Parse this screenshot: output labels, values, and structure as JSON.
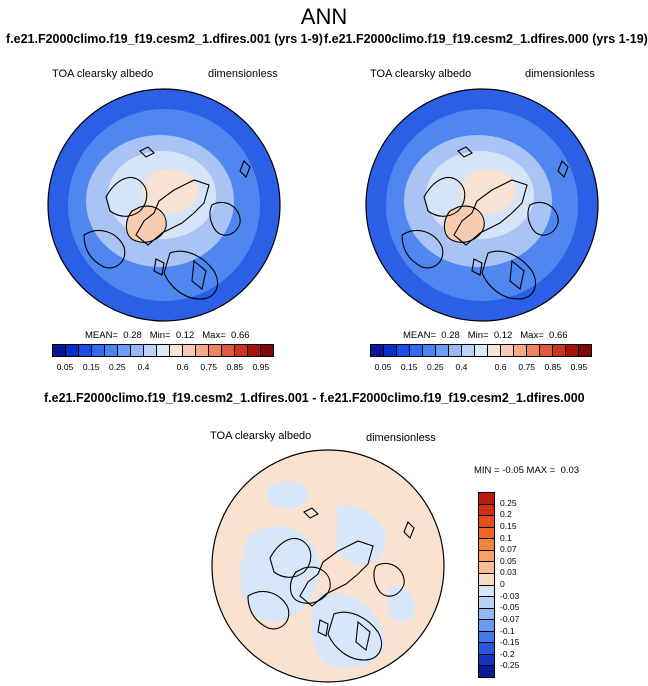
{
  "page_title": "ANN",
  "chart_data": [
    {
      "type": "map",
      "name": "case-1",
      "title": "f.e21.F2000climo.f19_f19.cesm2_1.dfires.001 (yrs 1-9)",
      "variable": "TOA clearsky albedo",
      "units": "dimensionless",
      "projection": "north polar stereographic",
      "mean_label": "MEAN=",
      "mean": "0.28",
      "min_label": "Min=",
      "min": "0.12",
      "max_label": "Max=",
      "max": "0.66",
      "colorbar_ticks": [
        "0.05",
        "0.15",
        "0.25",
        "0.4",
        "0.6",
        "0.75",
        "0.85",
        "0.95"
      ]
    },
    {
      "type": "map",
      "name": "case-2",
      "title": "f.e21.F2000climo.f19_f19.cesm2_1.dfires.000 (yrs 1-19)",
      "variable": "TOA clearsky albedo",
      "units": "dimensionless",
      "projection": "north polar stereographic",
      "mean_label": "MEAN=",
      "mean": "0.28",
      "min_label": "Min=",
      "min": "0.12",
      "max_label": "Max=",
      "max": "0.66",
      "colorbar_ticks": [
        "0.05",
        "0.15",
        "0.25",
        "0.4",
        "0.6",
        "0.75",
        "0.85",
        "0.95"
      ]
    },
    {
      "type": "map",
      "name": "difference",
      "title": "f.e21.F2000climo.f19_f19.cesm2_1.dfires.001 - f.e21.F2000climo.f19_f19.cesm2_1.dfires.000",
      "variable": "TOA clearsky albedo",
      "units": "dimensionless",
      "projection": "north polar stereographic",
      "min_label": "MIN =",
      "min": "-0.05",
      "max_label": "MAX =",
      "max": "0.03",
      "colorbar_ticks": [
        "0.25",
        "0.2",
        "0.15",
        "0.1",
        "0.07",
        "0.05",
        "0.03",
        "0",
        "-0.03",
        "-0.05",
        "-0.07",
        "-0.1",
        "-0.15",
        "-0.2",
        "-0.25"
      ]
    }
  ],
  "colors": {
    "abs_scale": [
      "#08169a",
      "#0a2fc8",
      "#1a4fe6",
      "#2f6cf0",
      "#4a86f2",
      "#6e9ef4",
      "#96b9f5",
      "#bcd2f7",
      "#dce8f7",
      "#f7e3d6",
      "#f6cdb4",
      "#f3a98a",
      "#ee8462",
      "#e25a3c",
      "#cc3320",
      "#a5150c",
      "#7d0a06"
    ],
    "diff_scale": [
      "#b81c0b",
      "#d12f12",
      "#e64b1a",
      "#f06526",
      "#f48440",
      "#f6a068",
      "#f7bd94",
      "#f9dcc6",
      "#d7e6f8",
      "#b8d1f6",
      "#94b6f3",
      "#6d98ef",
      "#4878e8",
      "#2a55dc",
      "#1534c4",
      "#0a1b98"
    ],
    "ocean_dark": "#2a5fe6",
    "ocean_mid": "#4f86f0",
    "ice_light": "#a9c4f4",
    "pale_blue": "#d6e4f7",
    "greenland": "#f7cdb1",
    "arctic_core": "#f8e2d4",
    "diff_base": "#d7e6f8",
    "diff_pos": "#f9e3d0",
    "coast": "#000000"
  }
}
